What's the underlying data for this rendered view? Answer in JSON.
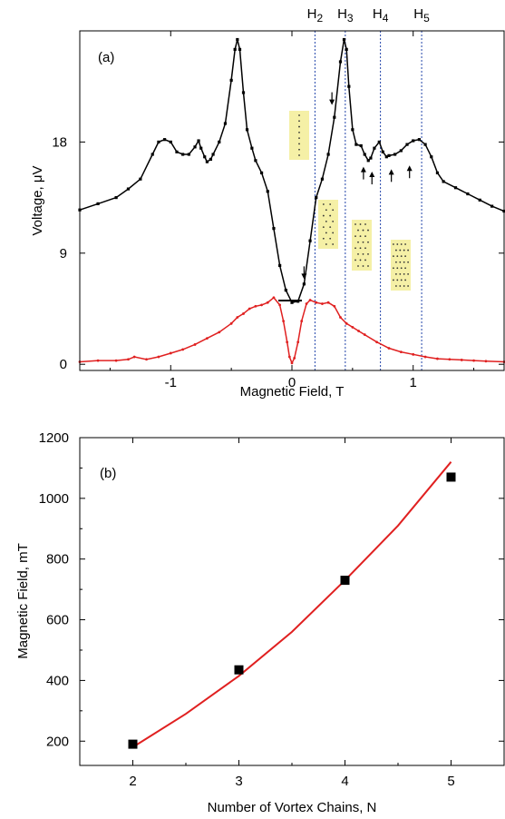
{
  "chart_data": [
    {
      "type": "line",
      "panel_label": "(a)",
      "xlabel": "Magnetic Field, T",
      "ylabel": "Voltage, μV",
      "xlim": [
        -1.75,
        1.75
      ],
      "ylim": [
        -0.5,
        27
      ],
      "xticks": [
        -1,
        0,
        1
      ],
      "yticks": [
        0,
        9,
        18
      ],
      "series": [
        {
          "color": "#000000",
          "marker": "square",
          "x": [
            -1.75,
            -1.6,
            -1.45,
            -1.35,
            -1.25,
            -1.15,
            -1.1,
            -1.05,
            -1.0,
            -0.95,
            -0.9,
            -0.85,
            -0.8,
            -0.77,
            -0.75,
            -0.72,
            -0.7,
            -0.67,
            -0.65,
            -0.6,
            -0.55,
            -0.5,
            -0.47,
            -0.45,
            -0.43,
            -0.4,
            -0.37,
            -0.33,
            -0.3,
            -0.25,
            -0.2,
            -0.15,
            -0.1,
            -0.05,
            0.0,
            0.05,
            0.1,
            0.15,
            0.2,
            0.25,
            0.3,
            0.35,
            0.4,
            0.43,
            0.45,
            0.47,
            0.5,
            0.53,
            0.57,
            0.6,
            0.63,
            0.65,
            0.68,
            0.72,
            0.75,
            0.78,
            0.8,
            0.85,
            0.9,
            0.95,
            1.0,
            1.05,
            1.1,
            1.15,
            1.2,
            1.25,
            1.35,
            1.45,
            1.55,
            1.65,
            1.75
          ],
          "y": [
            12.5,
            13.0,
            13.5,
            14.2,
            15.0,
            17.0,
            18.0,
            18.2,
            18.0,
            17.2,
            17.0,
            17.0,
            17.6,
            18.1,
            17.5,
            16.8,
            16.4,
            16.6,
            17.0,
            18.0,
            19.5,
            23.0,
            25.5,
            26.3,
            25.5,
            22.0,
            19.0,
            17.5,
            16.5,
            15.5,
            14.0,
            11.0,
            8.0,
            6.0,
            5.0,
            5.1,
            6.5,
            10.0,
            13.5,
            15.0,
            17.0,
            20.0,
            24.5,
            26.3,
            25.5,
            22.5,
            19.0,
            17.8,
            17.7,
            17.0,
            16.5,
            16.7,
            17.5,
            18.0,
            17.2,
            16.8,
            16.9,
            17.0,
            17.3,
            17.8,
            18.1,
            18.2,
            17.8,
            16.8,
            15.5,
            14.8,
            14.3,
            13.8,
            13.3,
            12.8,
            12.4
          ]
        },
        {
          "color": "#e02020",
          "marker": "dot",
          "x": [
            -1.75,
            -1.6,
            -1.45,
            -1.35,
            -1.3,
            -1.2,
            -1.1,
            -1.0,
            -0.9,
            -0.8,
            -0.7,
            -0.6,
            -0.5,
            -0.45,
            -0.4,
            -0.35,
            -0.3,
            -0.25,
            -0.2,
            -0.15,
            -0.1,
            -0.07,
            -0.04,
            -0.02,
            0.0,
            0.02,
            0.05,
            0.08,
            0.12,
            0.15,
            0.2,
            0.25,
            0.3,
            0.35,
            0.4,
            0.45,
            0.5,
            0.55,
            0.6,
            0.7,
            0.8,
            0.9,
            1.0,
            1.1,
            1.2,
            1.3,
            1.4,
            1.5,
            1.6,
            1.75
          ],
          "y": [
            0.2,
            0.3,
            0.3,
            0.4,
            0.6,
            0.4,
            0.6,
            0.9,
            1.2,
            1.6,
            2.1,
            2.6,
            3.3,
            3.8,
            4.1,
            4.5,
            4.7,
            4.8,
            5.0,
            5.4,
            4.8,
            3.5,
            1.8,
            0.6,
            0.1,
            0.5,
            1.8,
            3.5,
            4.9,
            5.2,
            5.0,
            4.9,
            5.0,
            4.7,
            3.8,
            3.3,
            3.0,
            2.7,
            2.4,
            1.8,
            1.3,
            1.0,
            0.8,
            0.6,
            0.45,
            0.4,
            0.35,
            0.3,
            0.25,
            0.2
          ]
        }
      ],
      "vlines": [
        {
          "label_base": "H",
          "label_sub": "2",
          "x": 0.19
        },
        {
          "label_base": "H",
          "label_sub": "3",
          "x": 0.44
        },
        {
          "label_base": "H",
          "label_sub": "4",
          "x": 0.73
        },
        {
          "label_base": "H",
          "label_sub": "5",
          "x": 1.07
        }
      ],
      "arrows": [
        {
          "x": 0.1,
          "y": 6.9,
          "dir": "down"
        },
        {
          "x": 0.33,
          "y": 21.0,
          "dir": "down"
        },
        {
          "x": 0.59,
          "y": 16.0,
          "dir": "up"
        },
        {
          "x": 0.66,
          "y": 15.6,
          "dir": "up"
        },
        {
          "x": 0.82,
          "y": 15.8,
          "dir": "up"
        },
        {
          "x": 0.97,
          "y": 16.1,
          "dir": "up"
        }
      ],
      "insets_count": 4,
      "colors": {
        "inset_fill": "#f5f0a6",
        "vline": "#2244aa"
      }
    },
    {
      "type": "scatter",
      "panel_label": "(b)",
      "xlabel": "Number of Vortex Chains, N",
      "ylabel": "Magnetic Field, mT",
      "xlim": [
        1.5,
        5.5
      ],
      "ylim": [
        120,
        1200
      ],
      "xticks": [
        2,
        3,
        4,
        5
      ],
      "yticks": [
        200,
        400,
        600,
        800,
        1000,
        1200
      ],
      "points": {
        "x": [
          2,
          3,
          4,
          5
        ],
        "y": [
          190,
          435,
          730,
          1070
        ]
      },
      "fit": {
        "x": [
          2,
          2.5,
          3,
          3.5,
          4,
          4.5,
          5
        ],
        "y": [
          180,
          290,
          415,
          560,
          730,
          910,
          1120
        ],
        "color": "#e02020"
      }
    }
  ]
}
